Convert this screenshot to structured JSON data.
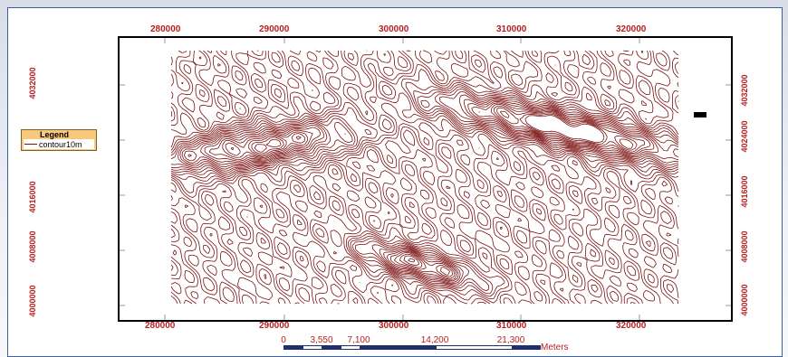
{
  "x_ticks": [
    "280000",
    "290000",
    "300000",
    "310000",
    "320000"
  ],
  "y_ticks_left": [
    "4032000",
    "4024000",
    "4016000",
    "4008000",
    "4000000"
  ],
  "y_ticks_right": [
    "4032000",
    "4024000",
    "4016000",
    "4008000",
    "4000000"
  ],
  "legend": {
    "title": "Legend",
    "layer": "contour10m"
  },
  "scalebar": {
    "labels": [
      "0",
      "3,550",
      "7,100",
      "14,200",
      "21,300"
    ],
    "units": "Meters"
  },
  "colors": {
    "contour": "#7a1010",
    "tick_text": "#b81f1f",
    "scale_dark": "#1f2f6b",
    "legend_bg": "#f8c97a"
  }
}
